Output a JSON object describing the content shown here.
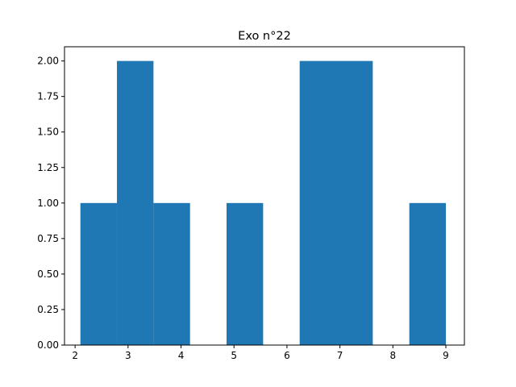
{
  "chart_data": {
    "type": "bar",
    "title": "Exo n°22",
    "xlabel": "",
    "ylabel": "",
    "bin_edges": [
      2.1,
      2.79,
      3.48,
      4.17,
      4.86,
      5.55,
      6.24,
      6.93,
      7.62,
      8.31,
      9.0
    ],
    "values": [
      1,
      2,
      1,
      0,
      1,
      0,
      2,
      2,
      0,
      1
    ],
    "xlim": [
      1.8,
      9.35
    ],
    "ylim": [
      0,
      2.1
    ],
    "xticks": [
      2,
      3,
      4,
      5,
      6,
      7,
      8,
      9
    ],
    "yticks": [
      0.0,
      0.25,
      0.5,
      0.75,
      1.0,
      1.25,
      1.5,
      1.75,
      2.0
    ],
    "xtick_labels": [
      "2",
      "3",
      "4",
      "5",
      "6",
      "7",
      "8",
      "9"
    ],
    "ytick_labels": [
      "0.00",
      "0.25",
      "0.50",
      "0.75",
      "1.00",
      "1.25",
      "1.50",
      "1.75",
      "2.00"
    ],
    "bar_color": "#1f77b4",
    "grid": false
  }
}
